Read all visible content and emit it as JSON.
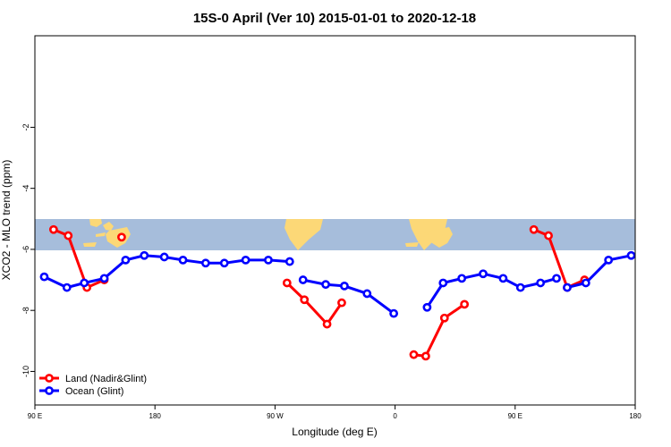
{
  "chart_data": {
    "type": "line",
    "title": "15S-0 April (Ver 10)   2015-01-01 to 2020-12-18",
    "xlabel": "Longitude (deg E)",
    "ylabel": "XCO2 - MLO trend (ppm)",
    "xlim": [
      90,
      540
    ],
    "ylim": [
      -11.1,
      1.0
    ],
    "x_ticks": [
      {
        "value": 90,
        "label": "90 E"
      },
      {
        "value": 180,
        "label": "180"
      },
      {
        "value": 270,
        "label": "90 W"
      },
      {
        "value": 360,
        "label": "0"
      },
      {
        "value": 450,
        "label": "90 E"
      },
      {
        "value": 540,
        "label": "180"
      }
    ],
    "y_ticks": [
      {
        "value": -2,
        "label": "-2"
      },
      {
        "value": -4,
        "label": "-4"
      },
      {
        "value": -6,
        "label": "-6"
      },
      {
        "value": -8,
        "label": "-8"
      },
      {
        "value": -10,
        "label": "-10"
      }
    ],
    "band": {
      "lat_from": -15,
      "lat_to": 0,
      "ocean_color": "#a6bddb",
      "land_color": "#fcd877"
    },
    "legend_position": "bottom-left",
    "series": [
      {
        "name": "Land (Nadir&Glint)",
        "color": "#ff0000",
        "segments": [
          [
            [
              104,
              -5.35
            ],
            [
              115,
              -5.55
            ],
            [
              129,
              -7.25
            ],
            [
              142,
              -7.0
            ]
          ],
          [
            [
              155,
              -5.6
            ]
          ],
          [
            [
              279,
              -7.1
            ],
            [
              292,
              -7.65
            ],
            [
              309,
              -8.45
            ],
            [
              320,
              -7.75
            ]
          ],
          [
            [
              374,
              -9.45
            ],
            [
              383,
              -9.5
            ],
            [
              397,
              -8.25
            ],
            [
              412,
              -7.8
            ]
          ],
          [
            [
              464,
              -5.35
            ],
            [
              475,
              -5.55
            ],
            [
              489,
              -7.25
            ],
            [
              502,
              -7.0
            ]
          ]
        ]
      },
      {
        "name": "Ocean (Glint)",
        "color": "#0000ff",
        "segments": [
          [
            [
              97,
              -6.9
            ],
            [
              114,
              -7.25
            ],
            [
              127,
              -7.1
            ],
            [
              142,
              -6.95
            ],
            [
              158,
              -6.35
            ],
            [
              172,
              -6.2
            ],
            [
              187,
              -6.25
            ],
            [
              201,
              -6.35
            ],
            [
              218,
              -6.45
            ],
            [
              232,
              -6.45
            ],
            [
              248,
              -6.35
            ],
            [
              265,
              -6.35
            ],
            [
              281,
              -6.4
            ]
          ],
          [
            [
              291,
              -7.0
            ],
            [
              308,
              -7.15
            ],
            [
              322,
              -7.2
            ],
            [
              339,
              -7.45
            ],
            [
              359,
              -8.1
            ]
          ],
          [
            [
              384,
              -7.9
            ],
            [
              396,
              -7.1
            ],
            [
              410,
              -6.95
            ],
            [
              426,
              -6.8
            ],
            [
              441,
              -6.95
            ],
            [
              454,
              -7.25
            ],
            [
              469,
              -7.1
            ],
            [
              481,
              -6.95
            ]
          ],
          [
            [
              489,
              -7.25
            ],
            [
              503,
              -7.1
            ],
            [
              520,
              -6.35
            ],
            [
              537,
              -6.2
            ]
          ]
        ]
      }
    ]
  }
}
